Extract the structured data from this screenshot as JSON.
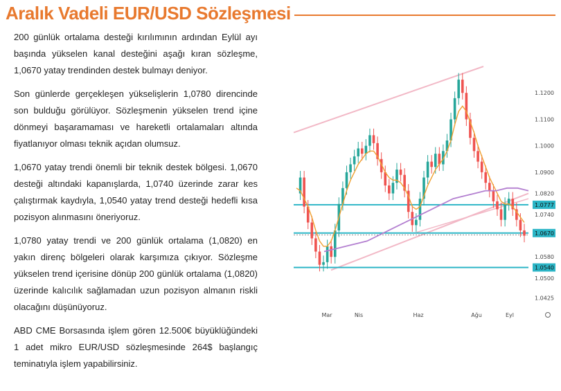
{
  "header": {
    "title": "Aralık Vadeli EUR/USD Sözleşmesi"
  },
  "paragraphs": [
    "200 günlük ortalama desteği kırılımının ardından Eylül ayı başında yükselen kanal desteğini aşağı kıran sözleşme, 1,0670 yatay trendinden destek bulmayı deniyor.",
    "Son günlerde gerçekleşen yükselişlerin 1,0780 direncinde son bulduğu görülüyor. Sözleşmenin yükselen trend içine dönmeyi başaramaması ve hareketli ortalamaları altında fiyatlanıyor olması teknik açıdan olumsuz.",
    "1,0670 yatay trendi önemli bir teknik destek bölgesi. 1,0670 desteği altındaki kapanışlarda, 1,0740 üzerinde zarar kes çalıştırmak kaydıyla, 1,0540 yatay trend desteği hedefli kısa pozisyon alınmasını öneriyoruz.",
    "1,0780 yatay trendi ve 200 günlük ortalama (1,0820) en yakın direnç bölgeleri olarak karşımıza çıkıyor. Sözleşme yükselen trend içerisine dönüp 200 günlük ortalama (1,0820) üzerinde kalıcılık sağlamadan uzun pozisyon almanın riskli olacağını düşünüyoruz.",
    "ABD CME Borsasında işlem gören 12.500€ büyüklüğündeki 1 adet mikro EUR/USD sözleşmesinde 264$ başlangıç teminatıyla işlem yapabilirsiniz."
  ],
  "chart_data": {
    "type": "line",
    "x_labels": [
      "Mar",
      "Nis",
      "Haz",
      "Ağu",
      "Eyl"
    ],
    "y_ticks": [
      "1.1200",
      "1.1100",
      "1.1000",
      "1.0900",
      "1.0820",
      "1.0740",
      "1.0580",
      "1.0500",
      "1.0425"
    ],
    "ylim": [
      1.04,
      1.13
    ],
    "highlighted_levels": [
      {
        "label": "1.0777",
        "value": 1.0777
      },
      {
        "label": "1.0670",
        "value": 1.067
      },
      {
        "label": "1.0540",
        "value": 1.054
      }
    ],
    "series": [
      {
        "values": [
          1.082,
          1.088,
          1.077,
          1.071,
          1.065,
          1.06,
          1.055,
          1.056,
          1.062,
          1.058,
          1.068,
          1.078,
          1.084,
          1.09,
          1.093,
          1.096,
          1.099,
          1.097,
          1.1,
          1.104,
          1.101,
          1.095,
          1.09,
          1.085,
          1.082,
          1.086,
          1.091,
          1.089,
          1.083,
          1.075,
          1.07,
          1.072,
          1.08,
          1.088,
          1.094,
          1.092,
          1.097,
          1.093,
          1.098,
          1.102,
          1.11,
          1.118,
          1.125,
          1.12,
          1.11,
          1.103,
          1.098,
          1.094,
          1.09,
          1.086,
          1.083,
          1.079,
          1.076,
          1.072,
          1.078,
          1.08,
          1.076,
          1.072,
          1.068,
          1.066
        ]
      },
      {
        "values": [
          1.084,
          1.083,
          1.08,
          1.077,
          1.073,
          1.068,
          1.064,
          1.062,
          1.062,
          1.064,
          1.068,
          1.073,
          1.078,
          1.083,
          1.087,
          1.09,
          1.093,
          1.095,
          1.097,
          1.098,
          1.098,
          1.096,
          1.093,
          1.09,
          1.088,
          1.087,
          1.087,
          1.086,
          1.084,
          1.081,
          1.077,
          1.076,
          1.077,
          1.081,
          1.085,
          1.088,
          1.091,
          1.093,
          1.095,
          1.098,
          1.102,
          1.108,
          1.113,
          1.115,
          1.113,
          1.109,
          1.105,
          1.1,
          1.096,
          1.092,
          1.088,
          1.085,
          1.082,
          1.079,
          1.078,
          1.078,
          1.077,
          1.075,
          1.073,
          1.071
        ]
      },
      {
        "values": [
          1.06,
          1.061,
          1.062,
          1.063,
          1.064,
          1.066,
          1.068,
          1.07,
          1.072,
          1.074,
          1.076,
          1.078,
          1.08,
          1.081,
          1.082,
          1.083,
          1.083,
          1.084,
          1.084,
          1.083
        ]
      }
    ]
  }
}
